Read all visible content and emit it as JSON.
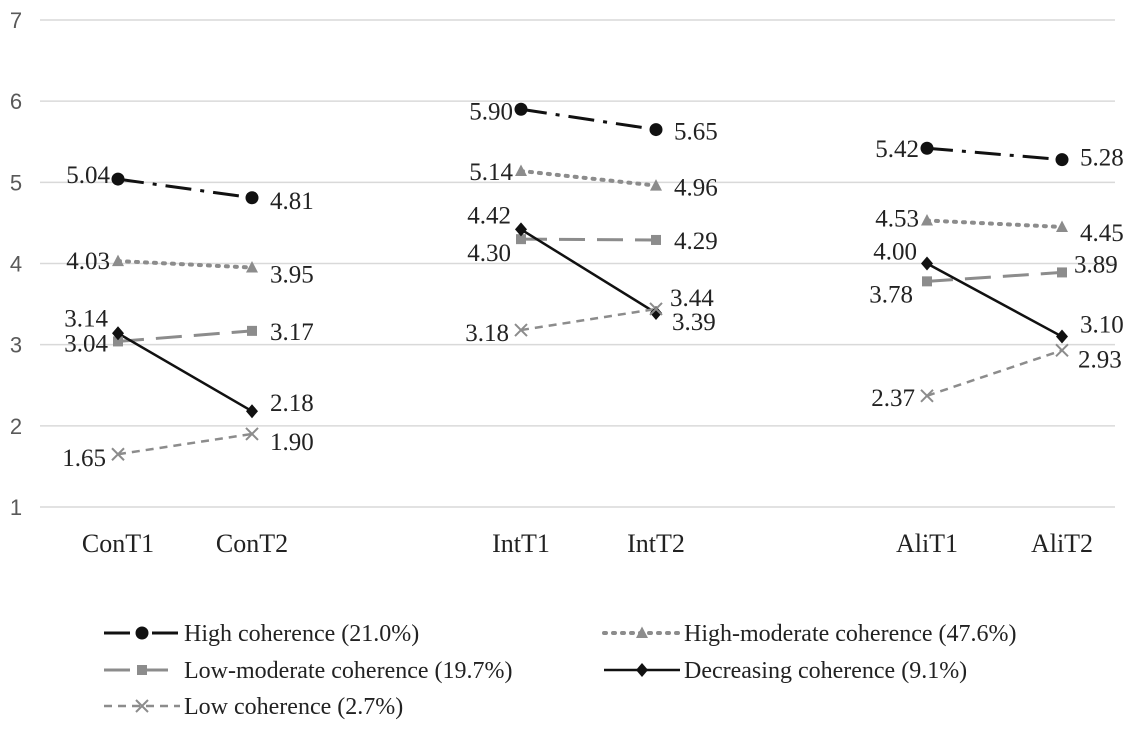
{
  "chart_data": {
    "type": "line",
    "title": "",
    "xlabel": "",
    "ylabel": "",
    "ylim": [
      1,
      7
    ],
    "yticks": [
      1,
      2,
      3,
      4,
      5,
      6,
      7
    ],
    "grid": true,
    "legend_position": "bottom",
    "groups": [
      {
        "name": "Con",
        "categories": [
          "ConT1",
          "ConT2"
        ]
      },
      {
        "name": "Int",
        "categories": [
          "IntT1",
          "IntT2"
        ]
      },
      {
        "name": "Ali",
        "categories": [
          "AliT1",
          "AliT2"
        ]
      }
    ],
    "series": [
      {
        "name": "High coherence (21.0%)",
        "color": "#111111",
        "marker": "circle",
        "line_style": "dash-dot",
        "values": [
          [
            5.04,
            4.81
          ],
          [
            5.9,
            5.65
          ],
          [
            5.42,
            5.28
          ]
        ],
        "labels": [
          [
            "5.04",
            "4.81"
          ],
          [
            "5.90",
            "5.65"
          ],
          [
            "5.42",
            "5.28"
          ]
        ]
      },
      {
        "name": "High-moderate coherence (47.6%)",
        "color": "#8c8c8c",
        "marker": "triangle",
        "line_style": "dotted",
        "values": [
          [
            4.03,
            3.95
          ],
          [
            5.14,
            4.96
          ],
          [
            4.53,
            4.45
          ]
        ],
        "labels": [
          [
            "4.03",
            "3.95"
          ],
          [
            "5.14",
            "4.96"
          ],
          [
            "4.53",
            "4.45"
          ]
        ]
      },
      {
        "name": "Low-moderate coherence (19.7%)",
        "color": "#8c8c8c",
        "marker": "square",
        "line_style": "long-dash",
        "values": [
          [
            3.04,
            3.17
          ],
          [
            4.3,
            4.29
          ],
          [
            3.78,
            3.89
          ]
        ],
        "labels": [
          [
            "3.04",
            "3.17"
          ],
          [
            "4.30",
            "4.29"
          ],
          [
            "3.78",
            "3.89"
          ]
        ]
      },
      {
        "name": "Decreasing coherence (9.1%)",
        "color": "#111111",
        "marker": "diamond",
        "line_style": "solid",
        "values": [
          [
            3.14,
            2.18
          ],
          [
            4.42,
            3.39
          ],
          [
            4.0,
            3.1
          ]
        ],
        "labels": [
          [
            "3.14",
            "2.18"
          ],
          [
            "4.42",
            "3.39"
          ],
          [
            "4.00",
            "3.10"
          ]
        ]
      },
      {
        "name": "Low coherence (2.7%)",
        "color": "#8c8c8c",
        "marker": "x",
        "line_style": "short-dash",
        "values": [
          [
            1.65,
            1.9
          ],
          [
            3.18,
            3.44
          ],
          [
            2.37,
            2.93
          ]
        ],
        "labels": [
          [
            "1.65",
            "1.90"
          ],
          [
            "3.18",
            "3.44"
          ],
          [
            "2.37",
            "2.93"
          ]
        ]
      }
    ]
  }
}
